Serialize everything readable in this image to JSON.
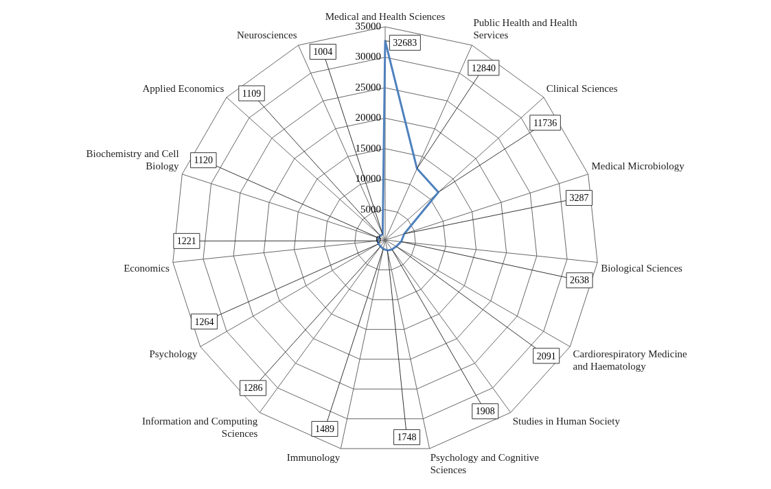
{
  "chart_data": {
    "type": "radar",
    "categories": [
      "Medical and Health Sciences",
      "Public Health and Health Services",
      "Clinical Sciences",
      "Medical Microbiology",
      "Biological Sciences",
      "Cardiorespiratory Medicine and Haematology",
      "Studies in Human Society",
      "Psychology and Cognitive Sciences",
      "Immunology",
      "Information and Computing Sciences",
      "Psychology",
      "Economics",
      "Biochemistry and Cell Biology",
      "Applied Economics",
      "Neurosciences"
    ],
    "series": [
      {
        "color": "#4f81bd",
        "values": [
          32683,
          12840,
          11736,
          3287,
          2638,
          2091,
          1908,
          1748,
          1489,
          1286,
          1264,
          1221,
          1120,
          1109,
          1004
        ],
        "value_labels": [
          "32683",
          "12840",
          "11736",
          "3287",
          "2638",
          "2091",
          "1908",
          "1748",
          "1489",
          "1286",
          "1264",
          "1221",
          "1120",
          "1109",
          "1004"
        ]
      }
    ],
    "ylim": [
      0,
      35000
    ],
    "yticks": [
      0,
      5000,
      10000,
      15000,
      20000,
      25000,
      30000,
      35000
    ],
    "grid": true,
    "legend": false,
    "marker": "none"
  }
}
